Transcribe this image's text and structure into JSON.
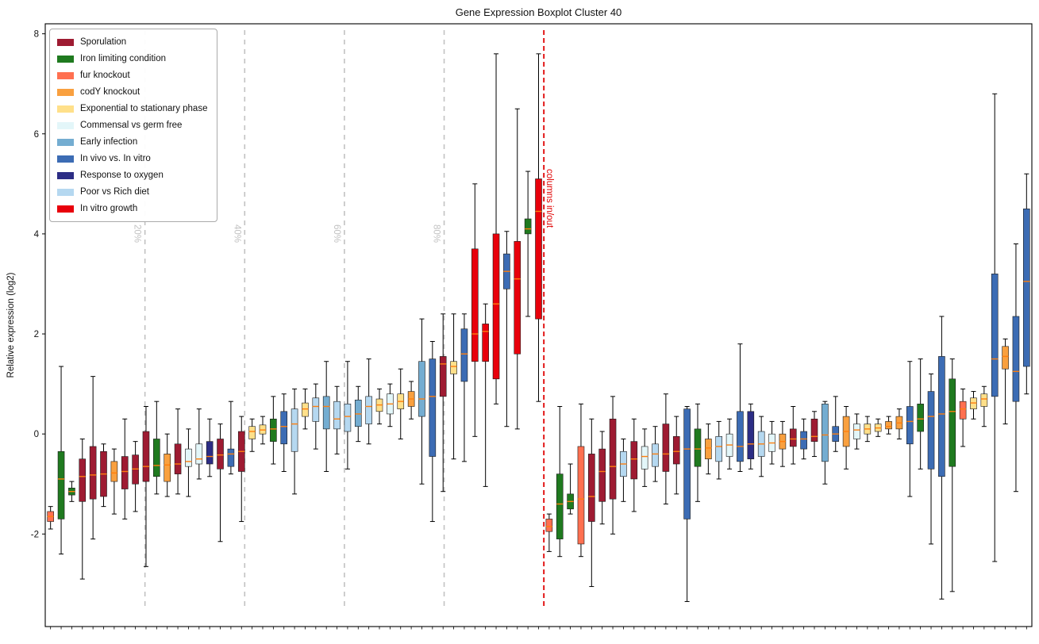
{
  "chart_data": {
    "type": "boxplot",
    "title": "Gene Expression Boxplot Cluster 40",
    "ylabel": "Relative expression (log2)",
    "ylim": [
      -3.85,
      8.2
    ],
    "yticks": [
      -2,
      0,
      2,
      4,
      6,
      8
    ],
    "grid": false,
    "legend_position": "upper left",
    "median_color": "#ff7f0e",
    "whisker_color": "#000000",
    "colors": {
      "sporulation": "#9e1b32",
      "iron": "#1f7a1f",
      "fur": "#ff7050",
      "codY": "#f9a03f",
      "exp_stat": "#ffe08a",
      "commensal": "#e3f6f9",
      "early_infection": "#74add1",
      "invivo": "#3c6cb4",
      "oxygen": "#2c2d85",
      "diet": "#b5d8f0",
      "invitro": "#e8000b"
    },
    "legend": [
      {
        "key": "sporulation",
        "label": "Sporulation"
      },
      {
        "key": "iron",
        "label": "Iron limiting condition"
      },
      {
        "key": "fur",
        "label": "fur knockout"
      },
      {
        "key": "codY",
        "label": "codY knockout"
      },
      {
        "key": "exp_stat",
        "label": "Exponential to stationary phase"
      },
      {
        "key": "commensal",
        "label": "Commensal vs germ free"
      },
      {
        "key": "early_infection",
        "label": "Early infection"
      },
      {
        "key": "invivo",
        "label": "In vivo vs. In vitro"
      },
      {
        "key": "oxygen",
        "label": "Response to oxygen"
      },
      {
        "key": "diet",
        "label": "Poor vs Rich diet"
      },
      {
        "key": "invitro",
        "label": "In vitro growth"
      }
    ],
    "n_in_columns": 47,
    "section_guides": {
      "color": "#c2c2c2",
      "lines": [
        {
          "label": "20%",
          "frac_of_section": 0.2
        },
        {
          "label": "40%",
          "frac_of_section": 0.4
        },
        {
          "label": "60%",
          "frac_of_section": 0.6
        },
        {
          "label": "80%",
          "frac_of_section": 0.8
        }
      ]
    },
    "boundary_line": {
      "label": "columns in/out",
      "color": "#e00000",
      "after_index": 47
    },
    "boxes": [
      {
        "c": "fur",
        "v": [
          -1.9,
          -1.75,
          -1.65,
          -1.55,
          -1.45
        ]
      },
      {
        "c": "iron",
        "v": [
          -2.4,
          -1.7,
          -0.9,
          -0.35,
          1.35
        ]
      },
      {
        "c": "iron",
        "v": [
          -1.35,
          -1.22,
          -1.15,
          -1.08,
          -0.95
        ]
      },
      {
        "c": "sporulation",
        "v": [
          -2.9,
          -1.35,
          -0.85,
          -0.5,
          -0.1
        ]
      },
      {
        "c": "sporulation",
        "v": [
          -2.1,
          -1.3,
          -0.82,
          -0.25,
          1.15
        ]
      },
      {
        "c": "sporulation",
        "v": [
          -1.45,
          -1.25,
          -0.8,
          -0.35,
          -0.2
        ]
      },
      {
        "c": "codY",
        "v": [
          -1.6,
          -0.95,
          -0.78,
          -0.55,
          -0.3
        ]
      },
      {
        "c": "sporulation",
        "v": [
          -1.7,
          -1.1,
          -0.75,
          -0.45,
          0.3
        ]
      },
      {
        "c": "sporulation",
        "v": [
          -1.55,
          -1.0,
          -0.7,
          -0.42,
          -0.15
        ]
      },
      {
        "c": "sporulation",
        "v": [
          -2.65,
          -0.95,
          -0.65,
          0.05,
          0.55
        ]
      },
      {
        "c": "iron",
        "v": [
          -1.2,
          -0.85,
          -0.63,
          -0.1,
          0.65
        ]
      },
      {
        "c": "codY",
        "v": [
          -1.25,
          -0.95,
          -0.62,
          -0.4,
          0.0
        ]
      },
      {
        "c": "sporulation",
        "v": [
          -1.2,
          -0.8,
          -0.6,
          -0.2,
          0.5
        ]
      },
      {
        "c": "commensal",
        "v": [
          -1.25,
          -0.65,
          -0.55,
          -0.3,
          0.1
        ]
      },
      {
        "c": "commensal",
        "v": [
          -0.9,
          -0.6,
          -0.5,
          -0.2,
          0.5
        ]
      },
      {
        "c": "oxygen",
        "v": [
          -0.85,
          -0.6,
          -0.45,
          -0.15,
          0.3
        ]
      },
      {
        "c": "sporulation",
        "v": [
          -2.15,
          -0.7,
          -0.42,
          -0.1,
          0.2
        ]
      },
      {
        "c": "invivo",
        "v": [
          -0.8,
          -0.65,
          -0.4,
          -0.3,
          0.65
        ]
      },
      {
        "c": "sporulation",
        "v": [
          -1.75,
          -0.75,
          -0.35,
          0.05,
          0.35
        ]
      },
      {
        "c": "exp_stat",
        "v": [
          -0.35,
          -0.1,
          0.05,
          0.15,
          0.3
        ]
      },
      {
        "c": "exp_stat",
        "v": [
          -0.2,
          0.0,
          0.08,
          0.18,
          0.35
        ]
      },
      {
        "c": "iron",
        "v": [
          -0.6,
          -0.15,
          0.1,
          0.3,
          0.75
        ]
      },
      {
        "c": "invivo",
        "v": [
          -0.75,
          -0.2,
          0.15,
          0.45,
          0.8
        ]
      },
      {
        "c": "diet",
        "v": [
          -1.2,
          -0.35,
          0.2,
          0.5,
          0.9
        ]
      },
      {
        "c": "exp_stat",
        "v": [
          0.1,
          0.35,
          0.5,
          0.62,
          0.9
        ]
      },
      {
        "c": "diet",
        "v": [
          -0.3,
          0.25,
          0.55,
          0.72,
          1.0
        ]
      },
      {
        "c": "early_infection",
        "v": [
          -0.75,
          0.1,
          0.55,
          0.75,
          1.45
        ]
      },
      {
        "c": "diet",
        "v": [
          -0.4,
          0.1,
          0.3,
          0.65,
          0.95
        ]
      },
      {
        "c": "diet",
        "v": [
          -0.7,
          0.05,
          0.35,
          0.6,
          1.45
        ]
      },
      {
        "c": "early_infection",
        "v": [
          -0.15,
          0.15,
          0.4,
          0.68,
          0.95
        ]
      },
      {
        "c": "diet",
        "v": [
          -0.2,
          0.2,
          0.55,
          0.75,
          1.5
        ]
      },
      {
        "c": "exp_stat",
        "v": [
          0.2,
          0.45,
          0.58,
          0.7,
          0.9
        ]
      },
      {
        "c": "commensal",
        "v": [
          0.15,
          0.4,
          0.6,
          0.8,
          1.0
        ]
      },
      {
        "c": "exp_stat",
        "v": [
          -0.1,
          0.5,
          0.65,
          0.8,
          1.3
        ]
      },
      {
        "c": "codY",
        "v": [
          0.3,
          0.55,
          0.7,
          0.85,
          1.05
        ]
      },
      {
        "c": "early_infection",
        "v": [
          -1.0,
          0.35,
          0.7,
          1.45,
          2.3
        ]
      },
      {
        "c": "invivo",
        "v": [
          -1.75,
          -0.45,
          0.75,
          1.5,
          1.85
        ]
      },
      {
        "c": "sporulation",
        "v": [
          -1.15,
          0.75,
          1.4,
          1.55,
          2.4
        ]
      },
      {
        "c": "exp_stat",
        "v": [
          -0.5,
          1.2,
          1.35,
          1.45,
          2.4
        ]
      },
      {
        "c": "invivo",
        "v": [
          -0.55,
          1.05,
          1.6,
          2.1,
          2.4
        ]
      },
      {
        "c": "invitro",
        "v": [
          -0.05,
          1.45,
          2.0,
          3.7,
          5.0
        ]
      },
      {
        "c": "invitro",
        "v": [
          -1.05,
          1.45,
          2.05,
          2.2,
          2.6
        ]
      },
      {
        "c": "invitro",
        "v": [
          0.6,
          1.1,
          2.6,
          4.0,
          7.6
        ]
      },
      {
        "c": "invivo",
        "v": [
          0.15,
          2.9,
          3.25,
          3.6,
          4.05
        ]
      },
      {
        "c": "invitro",
        "v": [
          0.1,
          1.6,
          3.1,
          3.85,
          6.5
        ]
      },
      {
        "c": "iron",
        "v": [
          2.35,
          4.0,
          4.1,
          4.3,
          5.25
        ]
      },
      {
        "c": "invitro",
        "v": [
          0.65,
          2.3,
          4.45,
          5.1,
          7.6
        ]
      },
      {
        "c": "fur",
        "v": [
          -2.35,
          -1.95,
          -1.85,
          -1.7,
          -1.6
        ]
      },
      {
        "c": "iron",
        "v": [
          -2.45,
          -2.1,
          -1.4,
          -0.8,
          0.55
        ]
      },
      {
        "c": "iron",
        "v": [
          -1.6,
          -1.5,
          -1.35,
          -1.2,
          -0.6
        ]
      },
      {
        "c": "fur",
        "v": [
          -2.45,
          -2.2,
          -1.3,
          -0.25,
          0.6
        ]
      },
      {
        "c": "sporulation",
        "v": [
          -3.05,
          -1.75,
          -1.25,
          -0.4,
          0.3
        ]
      },
      {
        "c": "sporulation",
        "v": [
          -1.8,
          -1.35,
          -0.75,
          -0.3,
          0.05
        ]
      },
      {
        "c": "sporulation",
        "v": [
          -2.0,
          -1.3,
          -0.65,
          0.3,
          0.75
        ]
      },
      {
        "c": "diet",
        "v": [
          -1.35,
          -0.85,
          -0.6,
          -0.35,
          -0.1
        ]
      },
      {
        "c": "sporulation",
        "v": [
          -1.55,
          -0.9,
          -0.5,
          -0.15,
          0.3
        ]
      },
      {
        "c": "commensal",
        "v": [
          -1.05,
          -0.7,
          -0.45,
          -0.25,
          0.1
        ]
      },
      {
        "c": "diet",
        "v": [
          -0.95,
          -0.65,
          -0.4,
          -0.2,
          0.15
        ]
      },
      {
        "c": "sporulation",
        "v": [
          -1.4,
          -0.75,
          -0.4,
          0.2,
          0.8
        ]
      },
      {
        "c": "sporulation",
        "v": [
          -1.2,
          -0.6,
          -0.35,
          -0.05,
          0.35
        ]
      },
      {
        "c": "invivo",
        "v": [
          -3.35,
          -1.7,
          -0.3,
          0.5,
          0.55
        ]
      },
      {
        "c": "iron",
        "v": [
          -1.35,
          -0.65,
          -0.3,
          0.1,
          0.6
        ]
      },
      {
        "c": "codY",
        "v": [
          -0.8,
          -0.5,
          -0.28,
          -0.1,
          0.2
        ]
      },
      {
        "c": "diet",
        "v": [
          -0.9,
          -0.55,
          -0.25,
          -0.05,
          0.25
        ]
      },
      {
        "c": "commensal",
        "v": [
          -0.7,
          -0.45,
          -0.22,
          0.0,
          0.3
        ]
      },
      {
        "c": "invivo",
        "v": [
          -0.75,
          -0.55,
          -0.25,
          0.45,
          1.8
        ]
      },
      {
        "c": "oxygen",
        "v": [
          -0.7,
          -0.5,
          -0.2,
          0.45,
          0.6
        ]
      },
      {
        "c": "diet",
        "v": [
          -0.85,
          -0.45,
          -0.2,
          0.05,
          0.35
        ]
      },
      {
        "c": "commensal",
        "v": [
          -0.6,
          -0.35,
          -0.18,
          0.0,
          0.25
        ]
      },
      {
        "c": "codY",
        "v": [
          -0.65,
          -0.3,
          -0.15,
          0.0,
          0.25
        ]
      },
      {
        "c": "sporulation",
        "v": [
          -0.6,
          -0.25,
          -0.1,
          0.1,
          0.55
        ]
      },
      {
        "c": "invivo",
        "v": [
          -0.5,
          -0.3,
          -0.1,
          0.05,
          0.3
        ]
      },
      {
        "c": "sporulation",
        "v": [
          -0.45,
          -0.15,
          -0.05,
          0.3,
          0.45
        ]
      },
      {
        "c": "early_infection",
        "v": [
          -1.0,
          -0.55,
          -0.02,
          0.6,
          0.65
        ]
      },
      {
        "c": "invivo",
        "v": [
          -0.35,
          -0.15,
          0.0,
          0.15,
          0.75
        ]
      },
      {
        "c": "codY",
        "v": [
          -0.7,
          -0.25,
          0.05,
          0.35,
          0.55
        ]
      },
      {
        "c": "commensal",
        "v": [
          -0.3,
          -0.1,
          0.08,
          0.2,
          0.4
        ]
      },
      {
        "c": "exp_stat",
        "v": [
          -0.15,
          0.0,
          0.1,
          0.2,
          0.35
        ]
      },
      {
        "c": "exp_stat",
        "v": [
          -0.05,
          0.05,
          0.12,
          0.2,
          0.3
        ]
      },
      {
        "c": "codY",
        "v": [
          0.0,
          0.1,
          0.15,
          0.25,
          0.35
        ]
      },
      {
        "c": "codY",
        "v": [
          -0.1,
          0.1,
          0.22,
          0.35,
          0.5
        ]
      },
      {
        "c": "invivo",
        "v": [
          -1.25,
          -0.2,
          0.25,
          0.55,
          1.45
        ]
      },
      {
        "c": "iron",
        "v": [
          -0.7,
          0.05,
          0.3,
          0.6,
          1.5
        ]
      },
      {
        "c": "invivo",
        "v": [
          -2.2,
          -0.7,
          0.35,
          0.85,
          1.2
        ]
      },
      {
        "c": "invivo",
        "v": [
          -3.3,
          -0.85,
          0.4,
          1.55,
          2.35
        ]
      },
      {
        "c": "iron",
        "v": [
          -3.15,
          -0.65,
          0.45,
          1.1,
          1.5
        ]
      },
      {
        "c": "fur",
        "v": [
          -0.25,
          0.3,
          0.5,
          0.65,
          0.9
        ]
      },
      {
        "c": "exp_stat",
        "v": [
          0.3,
          0.5,
          0.62,
          0.72,
          0.85
        ]
      },
      {
        "c": "exp_stat",
        "v": [
          0.15,
          0.55,
          0.7,
          0.8,
          0.95
        ]
      },
      {
        "c": "invivo",
        "v": [
          -2.55,
          0.75,
          1.5,
          3.2,
          6.8
        ]
      },
      {
        "c": "codY",
        "v": [
          0.2,
          1.3,
          1.55,
          1.75,
          1.9
        ]
      },
      {
        "c": "invivo",
        "v": [
          -1.15,
          0.65,
          1.25,
          2.35,
          3.8
        ]
      },
      {
        "c": "invivo",
        "v": [
          0.8,
          1.35,
          3.05,
          4.5,
          5.2
        ]
      }
    ]
  }
}
